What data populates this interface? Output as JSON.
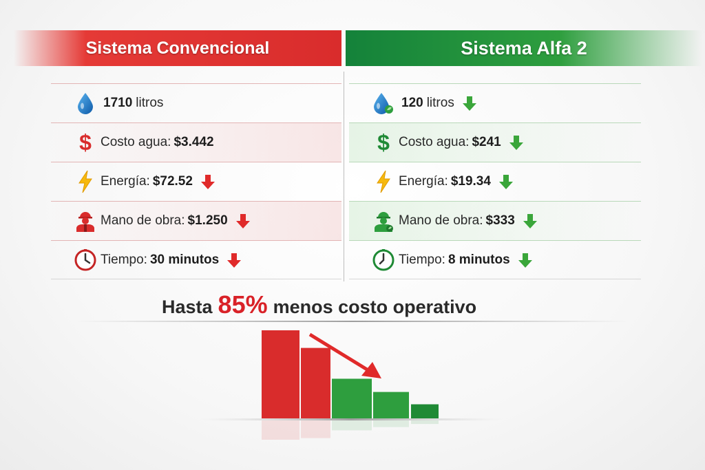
{
  "left": {
    "title": "Sistema Convencional",
    "accent": "#d92c2c",
    "rows": [
      {
        "icon": "water-drop-icon",
        "label": "",
        "value": "1710",
        "suffix": "litros"
      },
      {
        "icon": "dollar-icon",
        "label": "Costo agua:",
        "value": "$3.442",
        "suffix": ""
      },
      {
        "icon": "lightning-icon",
        "label": "Energía:",
        "value": "$72.52",
        "suffix": ""
      },
      {
        "icon": "worker-icon",
        "label": "Mano de obra:",
        "value": "$1.250",
        "suffix": ""
      },
      {
        "icon": "clock-icon",
        "label": "Tiempo:",
        "value": "30 minutos",
        "suffix": ""
      }
    ]
  },
  "right": {
    "title": "Sistema Alfa 2",
    "accent": "#2e9e3e",
    "rows": [
      {
        "icon": "water-drop-leaf-icon",
        "label": "",
        "value": "120",
        "suffix": "litros"
      },
      {
        "icon": "dollar-icon",
        "label": "Costo agua:",
        "value": "$241",
        "suffix": ""
      },
      {
        "icon": "lightning-icon",
        "label": "Energía:",
        "value": "$19.34",
        "suffix": ""
      },
      {
        "icon": "worker-icon",
        "label": "Mano de obra:",
        "value": "$333",
        "suffix": ""
      },
      {
        "icon": "clock-icon",
        "label": "Tiempo:",
        "value": "8 minutos",
        "suffix": ""
      }
    ]
  },
  "headline": {
    "prefix": "Hasta",
    "percent": "85%",
    "suffix": "menos costo operativo"
  },
  "chart_data": {
    "type": "bar",
    "title": "",
    "xlabel": "",
    "ylabel": "",
    "categories": [
      "",
      "",
      "",
      "",
      ""
    ],
    "values": [
      100,
      80,
      45,
      30,
      16
    ],
    "colors": [
      "#d92c2c",
      "#d92c2c",
      "#2e9e3e",
      "#2e9e3e",
      "#1f8a35"
    ],
    "ylim": [
      0,
      100
    ],
    "grid": false
  }
}
